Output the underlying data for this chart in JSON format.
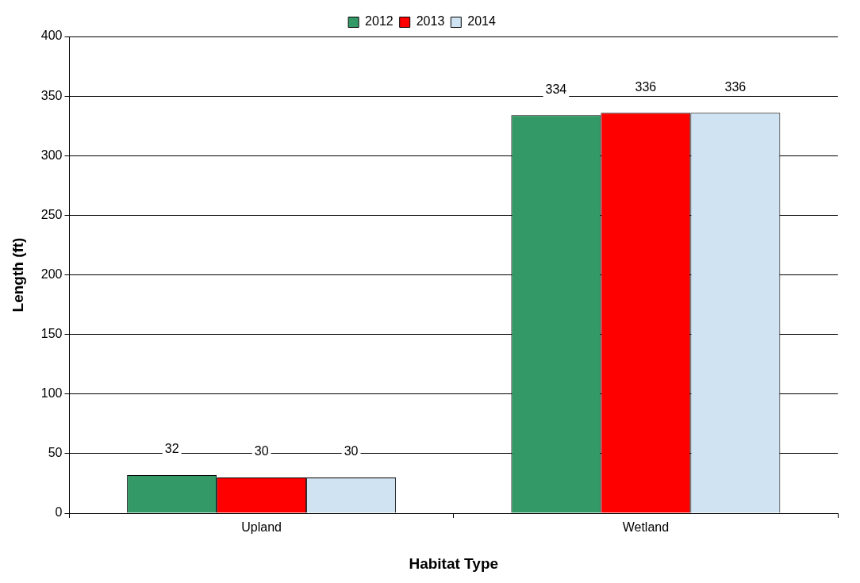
{
  "chart_data": {
    "type": "bar",
    "xlabel": "Habitat Type",
    "ylabel": "Length (ft)",
    "categories": [
      "Upland",
      "Wetland"
    ],
    "series": [
      {
        "name": "2012",
        "color": "#339966",
        "values": [
          32,
          334
        ]
      },
      {
        "name": "2013",
        "color": "#ff0000",
        "values": [
          30,
          336
        ]
      },
      {
        "name": "2014",
        "color": "#cfe3f3",
        "values": [
          30,
          336
        ]
      }
    ],
    "ylim": [
      0,
      400
    ],
    "yticks": [
      0,
      50,
      100,
      150,
      200,
      250,
      300,
      350,
      400
    ],
    "grid": "y",
    "legend": "top",
    "data_labels": true
  }
}
